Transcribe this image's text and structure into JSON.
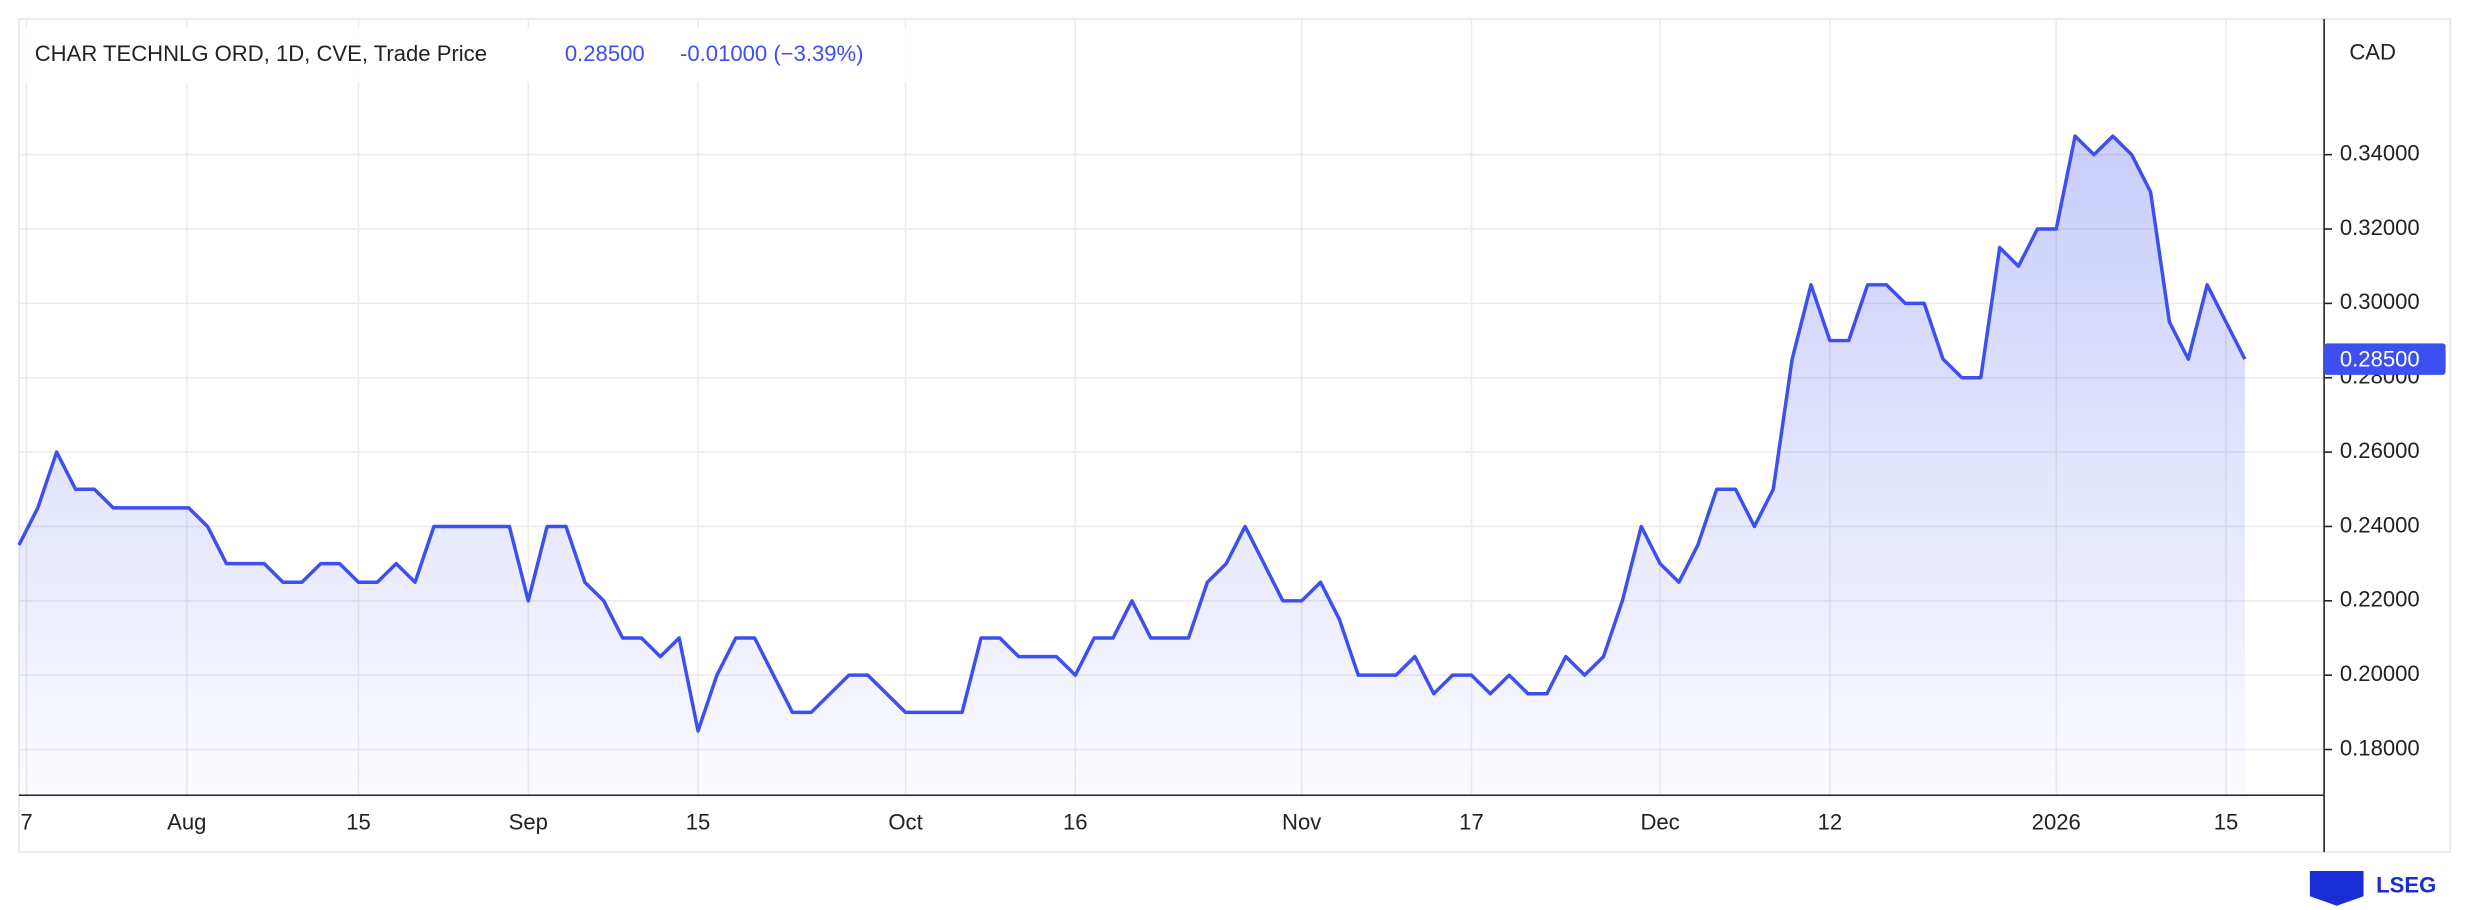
{
  "chart_data": {
    "type": "line",
    "title": "CHAR TECHNLG ORD, 1D, CVE, Trade Price",
    "last_price": "0.28500",
    "change": "-0.01000 (−3.39%)",
    "currency": "CAD",
    "brand": "LSEG",
    "color": "#3d4ff0",
    "grid": true,
    "values": [
      0.235,
      0.245,
      0.26,
      0.25,
      0.25,
      0.245,
      0.245,
      0.245,
      0.245,
      0.245,
      0.24,
      0.23,
      0.23,
      0.23,
      0.225,
      0.225,
      0.23,
      0.23,
      0.225,
      0.225,
      0.23,
      0.225,
      0.24,
      0.24,
      0.24,
      0.24,
      0.24,
      0.22,
      0.24,
      0.24,
      0.225,
      0.22,
      0.21,
      0.21,
      0.205,
      0.21,
      0.185,
      0.2,
      0.21,
      0.21,
      0.2,
      0.19,
      0.19,
      0.195,
      0.2,
      0.2,
      0.195,
      0.19,
      0.19,
      0.19,
      0.19,
      0.21,
      0.21,
      0.205,
      0.205,
      0.205,
      0.2,
      0.21,
      0.21,
      0.22,
      0.21,
      0.21,
      0.21,
      0.225,
      0.23,
      0.24,
      0.23,
      0.22,
      0.22,
      0.225,
      0.215,
      0.2,
      0.2,
      0.2,
      0.205,
      0.195,
      0.2,
      0.2,
      0.195,
      0.2,
      0.195,
      0.195,
      0.205,
      0.2,
      0.205,
      0.22,
      0.24,
      0.23,
      0.225,
      0.235,
      0.25,
      0.25,
      0.24,
      0.25,
      0.285,
      0.305,
      0.29,
      0.29,
      0.305,
      0.305,
      0.3,
      0.3,
      0.285,
      0.28,
      0.28,
      0.315,
      0.31,
      0.32,
      0.32,
      0.345,
      0.34,
      0.345,
      0.34,
      0.33,
      0.295,
      0.285,
      0.305,
      0.295,
      0.285
    ],
    "xlim": [
      0,
      122.2
    ],
    "xticks": [
      {
        "value": 0.4,
        "label": "7"
      },
      {
        "value": 8.9,
        "label": "Aug"
      },
      {
        "value": 18,
        "label": "15"
      },
      {
        "value": 27,
        "label": "Sep"
      },
      {
        "value": 36,
        "label": "15"
      },
      {
        "value": 47,
        "label": "Oct"
      },
      {
        "value": 56,
        "label": "16"
      },
      {
        "value": 68,
        "label": "Nov"
      },
      {
        "value": 77,
        "label": "17"
      },
      {
        "value": 87,
        "label": "Dec"
      },
      {
        "value": 96,
        "label": "12"
      },
      {
        "value": 108,
        "label": "2026"
      },
      {
        "value": 117,
        "label": "15"
      }
    ],
    "ylim": [
      0.1677,
      0.3765
    ],
    "yticks": [
      {
        "value": 0.18,
        "label": "0.18000"
      },
      {
        "value": 0.2,
        "label": "0.20000"
      },
      {
        "value": 0.22,
        "label": "0.22000"
      },
      {
        "value": 0.24,
        "label": "0.24000"
      },
      {
        "value": 0.26,
        "label": "0.26000"
      },
      {
        "value": 0.28,
        "label": "0.28000"
      },
      {
        "value": 0.3,
        "label": "0.30000"
      },
      {
        "value": 0.32,
        "label": "0.32000"
      },
      {
        "value": 0.34,
        "label": "0.34000"
      }
    ]
  }
}
